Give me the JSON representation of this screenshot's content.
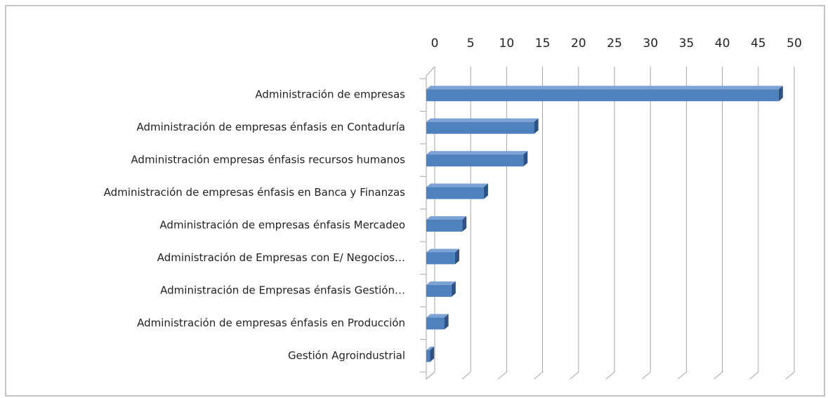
{
  "chart_data": {
    "type": "bar",
    "orientation": "horizontal",
    "categories": [
      "Administración de empresas",
      "Administración de empresas énfasis en Contaduría",
      "Administración empresas énfasis recursos humanos",
      "Administración de empresas énfasis en Banca y Finanzas",
      "Administración de empresas énfasis Mercadeo",
      "Administración de Empresas con E/ Negocios…",
      "Administración de Empresas énfasis Gestión…",
      "Administración de empresas énfasis en Producción",
      "Gestión Agroindustrial"
    ],
    "values": [
      49,
      15,
      13.5,
      8,
      5,
      4,
      3.5,
      2.5,
      0.5
    ],
    "color": "#4f81bd",
    "xlim": [
      0,
      50
    ],
    "xticks": [
      0,
      5,
      10,
      15,
      20,
      25,
      30,
      35,
      40,
      45,
      50
    ],
    "grid": true
  }
}
